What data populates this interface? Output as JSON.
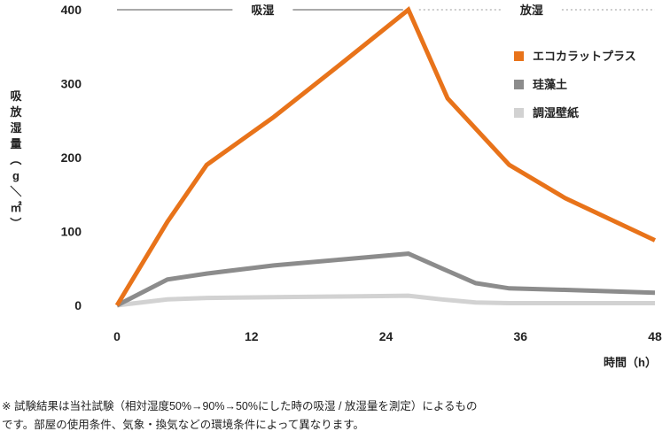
{
  "chart_data": {
    "type": "line",
    "x": [
      0,
      4.5,
      8,
      14,
      20,
      26,
      29,
      32,
      35,
      40,
      45,
      48
    ],
    "xticks": [
      "0",
      "12",
      "24",
      "36",
      "48"
    ],
    "xlabel": "時間（h）",
    "ylabel": "吸放湿量（g／㎡）",
    "yticks": [
      "0",
      "100",
      "200",
      "300",
      "400"
    ],
    "xlim": [
      0,
      48
    ],
    "ylim": [
      0,
      400
    ],
    "phases": [
      {
        "label": "吸湿",
        "from": 0,
        "to": 26,
        "style": "solid"
      },
      {
        "label": "放湿",
        "from": 26,
        "to": 48,
        "style": "dashed"
      }
    ],
    "legend_position": "top-right",
    "series": [
      {
        "name": "エコカラットプラス",
        "color": "#e8731a",
        "x": [
          0,
          4.5,
          8,
          14,
          20,
          26,
          29.5,
          35,
          40,
          48
        ],
        "values": [
          0,
          113,
          190,
          255,
          327,
          400,
          280,
          190,
          145,
          88
        ]
      },
      {
        "name": "珪藻土",
        "color": "#8c8c8c",
        "x": [
          0,
          4.5,
          8,
          14,
          20,
          26,
          29,
          32,
          35,
          40,
          48
        ],
        "values": [
          0,
          35,
          43,
          54,
          62,
          70,
          50,
          30,
          23,
          21,
          17
        ]
      },
      {
        "name": "調湿壁紙",
        "color": "#d2d2d2",
        "x": [
          0,
          4.5,
          8,
          14,
          20,
          26,
          29,
          32,
          35,
          40,
          48
        ],
        "values": [
          0,
          8,
          10,
          11,
          12,
          13,
          8,
          4,
          3,
          3,
          3
        ]
      }
    ]
  },
  "note": {
    "line1": "※ 試験結果は当社試験（相対湿度50%→90%→50%にした時の吸湿 / 放湿量を測定）によるもの",
    "line2": "です。部屋の使用条件、気象・換気などの環境条件によって異なります。"
  }
}
